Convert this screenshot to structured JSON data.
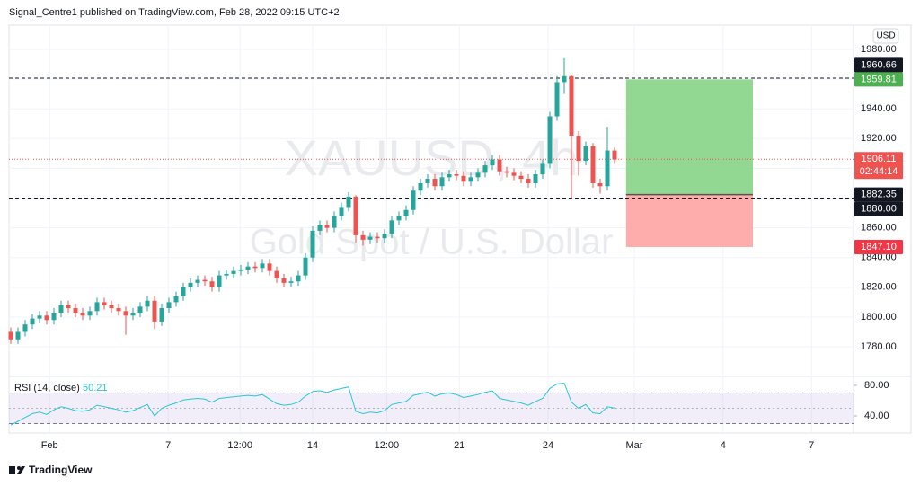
{
  "header": {
    "text": "Signal_Centre1 published on TradingView.com, Feb 28, 2022 09:15 UTC+2"
  },
  "footer": {
    "logo_text": "TradingView"
  },
  "chart_data": [
    {
      "type": "candlestick",
      "title": "XAUUSD, 4h",
      "subtitle": "Gold Spot / U.S. Dollar",
      "currency": "USD",
      "up_color": "#26a69a",
      "down_color": "#ef5350",
      "grid": true,
      "xlim": [
        -0.25,
        117.25
      ],
      "xticks": [
        {
          "value": 5.4,
          "label": "Feb"
        },
        {
          "value": 21.9,
          "label": "7"
        },
        {
          "value": 31.9,
          "label": "12:00"
        },
        {
          "value": 42,
          "label": "14"
        },
        {
          "value": 52.3,
          "label": "12:00"
        },
        {
          "value": 62.4,
          "label": "21"
        },
        {
          "value": 74.75,
          "label": "24"
        },
        {
          "value": 86.75,
          "label": "Mar"
        },
        {
          "value": 99.1,
          "label": "4"
        },
        {
          "value": 111.4,
          "label": "7"
        }
      ],
      "ylim": [
        1760.7,
        1996.3
      ],
      "yticks": [
        {
          "value": 1780,
          "label": "1780.00"
        },
        {
          "value": 1800,
          "label": "1800.00"
        },
        {
          "value": 1820,
          "label": "1820.00"
        },
        {
          "value": 1840,
          "label": "1840.00"
        },
        {
          "value": 1860,
          "label": "1860.00"
        },
        {
          "value": 1880,
          "label": "1880.00"
        },
        {
          "value": 1900,
          "label": "1900.00"
        },
        {
          "value": 1920,
          "label": "1920.00"
        },
        {
          "value": 1940,
          "label": "1940.00"
        },
        {
          "value": 1960,
          "label": "1960.00"
        },
        {
          "value": 1980,
          "label": "1980.00"
        }
      ],
      "open": [
        1790,
        1785,
        1790,
        1795,
        1799,
        1801,
        1798,
        1803,
        1808,
        1806,
        1803,
        1801,
        1804,
        1810,
        1808,
        1806,
        1804,
        1801,
        1803,
        1807,
        1811,
        1797,
        1806,
        1810,
        1814,
        1820,
        1823,
        1825,
        1824,
        1820,
        1828,
        1829,
        1831,
        1832,
        1834,
        1833,
        1836,
        1831,
        1826,
        1823,
        1824,
        1828,
        1840,
        1858,
        1862,
        1860,
        1868,
        1874,
        1881,
        1855,
        1852,
        1854,
        1853,
        1856,
        1865,
        1868,
        1872,
        1885,
        1890,
        1893,
        1888,
        1894,
        1896,
        1895,
        1891,
        1894,
        1897,
        1902,
        1906,
        1898,
        1897,
        1895,
        1893,
        1890,
        1896,
        1903,
        1935,
        1958,
        1962,
        1922,
        1905,
        1915,
        1890,
        1888,
        1912
      ],
      "high": [
        1793,
        1793,
        1798,
        1802,
        1804,
        1804,
        1806,
        1811,
        1811,
        1809,
        1806,
        1807,
        1813,
        1813,
        1811,
        1809,
        1807,
        1806,
        1810,
        1814,
        1814,
        1809,
        1813,
        1817,
        1823,
        1826,
        1828,
        1828,
        1827,
        1831,
        1832,
        1834,
        1835,
        1837,
        1837,
        1839,
        1839,
        1834,
        1829,
        1827,
        1831,
        1843,
        1861,
        1865,
        1865,
        1871,
        1877,
        1884,
        1882,
        1858,
        1857,
        1857,
        1859,
        1868,
        1871,
        1875,
        1888,
        1893,
        1896,
        1896,
        1897,
        1899,
        1899,
        1898,
        1897,
        1900,
        1905,
        1909,
        1909,
        1901,
        1900,
        1898,
        1896,
        1899,
        1906,
        1938,
        1962,
        1974,
        1963,
        1925,
        1918,
        1917,
        1893,
        1928,
        1914
      ],
      "low": [
        1782,
        1782,
        1787,
        1792,
        1796,
        1795,
        1795,
        1800,
        1803,
        1800,
        1798,
        1798,
        1801,
        1805,
        1803,
        1801,
        1788,
        1798,
        1800,
        1804,
        1792,
        1794,
        1803,
        1807,
        1811,
        1817,
        1820,
        1821,
        1817,
        1817,
        1825,
        1826,
        1828,
        1829,
        1830,
        1830,
        1828,
        1823,
        1820,
        1820,
        1821,
        1825,
        1837,
        1855,
        1857,
        1857,
        1865,
        1871,
        1850,
        1848,
        1849,
        1850,
        1850,
        1853,
        1862,
        1865,
        1869,
        1882,
        1887,
        1885,
        1885,
        1891,
        1892,
        1888,
        1888,
        1891,
        1894,
        1899,
        1895,
        1894,
        1892,
        1890,
        1887,
        1887,
        1893,
        1900,
        1932,
        1950,
        1880,
        1895,
        1902,
        1887,
        1883,
        1885,
        1903
      ],
      "close": [
        1785,
        1790,
        1795,
        1799,
        1801,
        1798,
        1803,
        1808,
        1806,
        1803,
        1801,
        1804,
        1810,
        1808,
        1806,
        1804,
        1801,
        1803,
        1807,
        1811,
        1797,
        1806,
        1810,
        1814,
        1820,
        1823,
        1825,
        1824,
        1820,
        1828,
        1829,
        1831,
        1832,
        1834,
        1833,
        1836,
        1831,
        1826,
        1823,
        1824,
        1828,
        1840,
        1858,
        1862,
        1860,
        1868,
        1874,
        1881,
        1855,
        1852,
        1854,
        1853,
        1856,
        1865,
        1868,
        1872,
        1885,
        1890,
        1893,
        1888,
        1894,
        1896,
        1895,
        1891,
        1894,
        1897,
        1902,
        1906,
        1898,
        1897,
        1895,
        1893,
        1890,
        1896,
        1903,
        1935,
        1958,
        1962,
        1922,
        1905,
        1915,
        1890,
        1888,
        1912,
        1906
      ],
      "position": {
        "entry": 1882.35,
        "target": 1959.81,
        "stop": 1847.1,
        "x": [
          85.6,
          103.25
        ],
        "profit_color": "#7fd17f",
        "loss_color": "#ff9e9e"
      },
      "price_labels": [
        {
          "value": 1959.81,
          "label": "1959.81",
          "color": "#4caf50"
        },
        {
          "value": 1960.66,
          "label": "1960.66",
          "color": "#131722",
          "line": "dashed"
        },
        {
          "value": 1906.11,
          "label": "1906.11",
          "countdown": "02:44:14",
          "color": "#ef5350",
          "line": "dotted"
        },
        {
          "value": 1882.35,
          "label": "1882.35",
          "color": "#131722"
        },
        {
          "value": 1880,
          "label": "1880.00",
          "color": "#131722",
          "line": "dashed"
        },
        {
          "value": 1847.1,
          "label": "1847.10",
          "color": "#f23645"
        }
      ]
    },
    {
      "type": "line",
      "title": "RSI (14, close)",
      "color": "#26c6da",
      "xlim": [
        -0.25,
        117.25
      ],
      "ylim": [
        20,
        90.6
      ],
      "yticks": [
        {
          "value": 40,
          "label": "40.00"
        },
        {
          "value": 80,
          "label": "80.00"
        }
      ],
      "band": [
        30,
        70
      ],
      "midline": 50,
      "band_color": "#7e57c2",
      "values": [
        28,
        33,
        38,
        43,
        45,
        42,
        48,
        52,
        50,
        47,
        46,
        48,
        54,
        52,
        50,
        48,
        45,
        47,
        51,
        55,
        40,
        50,
        54,
        57,
        61,
        62,
        63,
        62,
        58,
        63,
        64,
        65,
        66,
        67,
        66,
        68,
        62,
        56,
        54,
        55,
        58,
        66,
        72,
        73,
        71,
        74,
        76,
        78,
        46,
        43,
        45,
        44,
        47,
        55,
        57,
        59,
        67,
        69,
        71,
        66,
        69,
        70,
        68,
        64,
        66,
        68,
        71,
        73,
        63,
        61,
        59,
        57,
        54,
        59,
        63,
        76,
        82,
        83,
        58,
        50,
        55,
        44,
        43,
        52,
        50.21
      ]
    }
  ]
}
